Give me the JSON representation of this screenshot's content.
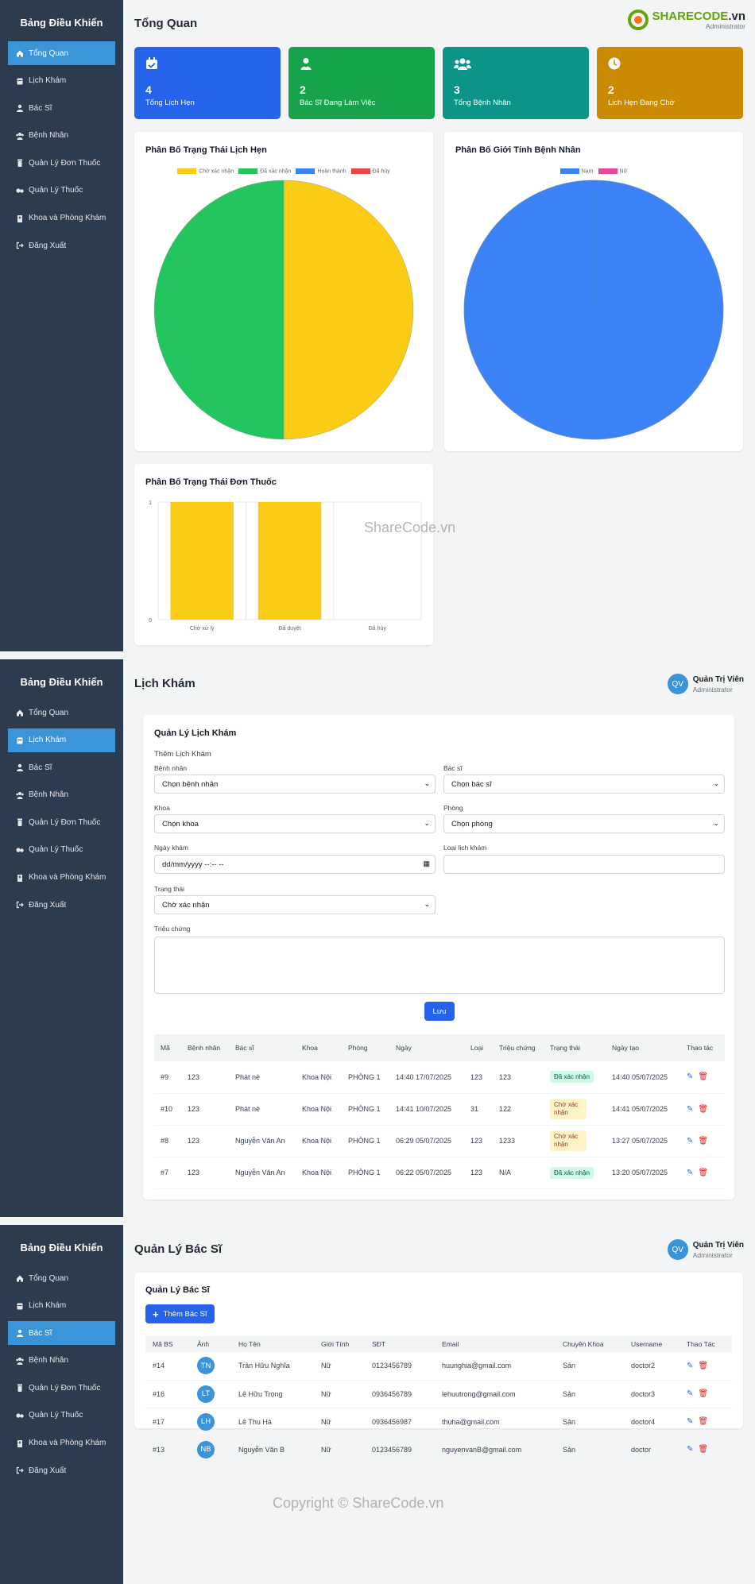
{
  "sidebar": {
    "title": "Bảng Điều Khiển",
    "items": [
      {
        "label": "Tổng Quan",
        "icon": "home-icon"
      },
      {
        "label": "Lịch Khám",
        "icon": "calendar-icon"
      },
      {
        "label": "Bác Sĩ",
        "icon": "user-doctor-icon"
      },
      {
        "label": "Bệnh Nhân",
        "icon": "users-icon"
      },
      {
        "label": "Quản Lý Đơn Thuốc",
        "icon": "prescription-bottle-icon"
      },
      {
        "label": "Quản Lý Thuốc",
        "icon": "pills-icon"
      },
      {
        "label": "Khoa và Phòng Khám",
        "icon": "hospital-icon"
      },
      {
        "label": "Đăng Xuất",
        "icon": "sign-out-icon"
      }
    ]
  },
  "dashboard": {
    "title": "Tổng Quan",
    "logo": {
      "brand": "SHARECODE",
      "suffix": ".vn"
    },
    "role": "Administrator",
    "stats": [
      {
        "value": "4",
        "label": "Tổng Lịch Hẹn",
        "color": "#2563eb",
        "icon": "calendar-check-icon"
      },
      {
        "value": "2",
        "label": "Bác Sĩ Đang Làm Việc",
        "color": "#16a34a",
        "icon": "user-doctor-icon"
      },
      {
        "value": "3",
        "label": "Tổng Bệnh Nhân",
        "color": "#0d9488",
        "icon": "users-icon"
      },
      {
        "value": "2",
        "label": "Lịch Hẹn Đang Chờ",
        "color": "#ca8a04",
        "icon": "clock-icon"
      }
    ],
    "watermark": "ShareCode.vn"
  },
  "chart_data": [
    {
      "type": "pie",
      "title": "Phân Bố Trạng Thái Lịch Hẹn",
      "legend_position": "top",
      "categories": [
        "Chờ xác nhận",
        "Đã xác nhận",
        "Hoàn thành",
        "Đã hủy"
      ],
      "values": [
        2,
        2,
        0,
        0
      ],
      "colors": [
        "#facc15",
        "#22c55e",
        "#3b82f6",
        "#ef4444"
      ]
    },
    {
      "type": "pie",
      "title": "Phân Bố Giới Tính Bệnh Nhân",
      "legend_position": "top",
      "categories": [
        "Nam",
        "Nữ"
      ],
      "values": [
        3,
        0
      ],
      "colors": [
        "#3b82f6",
        "#ec4899"
      ]
    },
    {
      "type": "bar",
      "title": "Phân Bố Trạng Thái Đơn Thuốc",
      "categories": [
        "Chờ xử lý",
        "Đã duyệt",
        "Đã hủy"
      ],
      "values": [
        1,
        1,
        0
      ],
      "ylim": [
        0,
        1
      ],
      "yticks": [
        "0",
        "1"
      ],
      "color": "#facc15",
      "grid": true
    }
  ],
  "appointments": {
    "title": "Lịch Khám",
    "user": {
      "initials": "QV",
      "name": "Quản Trị Viên",
      "role": "Administrator"
    },
    "card_title": "Quản Lý Lịch Khám",
    "form_title": "Thêm Lịch Khám",
    "fields": {
      "patient_label": "Bệnh nhân",
      "patient_value": "Chọn bệnh nhân",
      "doctor_label": "Bác sĩ",
      "doctor_value": "Chọn bác sĩ",
      "dept_label": "Khoa",
      "dept_value": "Chọn khoa",
      "room_label": "Phòng",
      "room_value": "Chọn phòng",
      "date_label": "Ngày khám",
      "date_value": "dd/mm/yyyy --:-- --",
      "type_label": "Loại lịch khám",
      "type_value": "",
      "status_label": "Trạng thái",
      "status_value": "Chờ xác nhận",
      "symptom_label": "Triệu chứng",
      "symptom_value": ""
    },
    "save_label": "Lưu",
    "headers": [
      "Mã",
      "Bệnh nhân",
      "Bác sĩ",
      "Khoa",
      "Phòng",
      "Ngày",
      "Loại",
      "Triệu chứng",
      "Trạng thái",
      "Ngày tạo",
      "Thao tác"
    ],
    "rows": [
      {
        "id": "#9",
        "patient": "123",
        "doctor": "Phát nè",
        "dept": "Khoa Nội",
        "room": "PHÒNG 1",
        "date": "14:40 17/07/2025",
        "type": "123",
        "symptom": "123",
        "status": "Đã xác nhận",
        "created": "14:40 05/07/2025"
      },
      {
        "id": "#10",
        "patient": "123",
        "doctor": "Phát nè",
        "dept": "Khoa Nội",
        "room": "PHÒNG 1",
        "date": "14:41 10/07/2025",
        "type": "31",
        "symptom": "122",
        "status": "Chờ xác nhận",
        "created": "14:41 05/07/2025"
      },
      {
        "id": "#8",
        "patient": "123",
        "doctor": "Nguyễn Văn An",
        "dept": "Khoa Nội",
        "room": "PHÒNG 1",
        "date": "06:29 05/07/2025",
        "type": "123",
        "symptom": "1233",
        "status": "Chờ xác nhận",
        "created": "13:27 05/07/2025"
      },
      {
        "id": "#7",
        "patient": "123",
        "doctor": "Nguyễn Văn An",
        "dept": "Khoa Nội",
        "room": "PHÒNG 1",
        "date": "06:22 05/07/2025",
        "type": "123",
        "symptom": "N/A",
        "status": "Đã xác nhận",
        "created": "13:20 05/07/2025"
      }
    ]
  },
  "doctors": {
    "title": "Quản Lý Bác Sĩ",
    "user": {
      "initials": "QV",
      "name": "Quản Trị Viên",
      "role": "Administrator"
    },
    "card_title": "Quản Lý Bác Sĩ",
    "add_label": "Thêm Bác Sĩ",
    "headers": [
      "Mã BS",
      "Ảnh",
      "Họ Tên",
      "Giới Tính",
      "SĐT",
      "Email",
      "Chuyên Khoa",
      "Username",
      "Thao Tác"
    ],
    "rows": [
      {
        "id": "#14",
        "initials": "TN",
        "name": "Trần Hữu Nghĩa",
        "gender": "Nữ",
        "phone": "0123456789",
        "email": "huunghia@gmail.com",
        "specialty": "Sản",
        "username": "doctor2"
      },
      {
        "id": "#16",
        "initials": "LT",
        "name": "Lê Hữu Trọng",
        "gender": "Nữ",
        "phone": "0936456789",
        "email": "lehuutrong@gmail.com",
        "specialty": "Sản",
        "username": "doctor3"
      },
      {
        "id": "#17",
        "initials": "LH",
        "name": "Lê Thu Hà",
        "gender": "Nữ",
        "phone": "0936456987",
        "email": "thuha@gmail.com",
        "specialty": "Sản",
        "username": "doctor4"
      },
      {
        "id": "#13",
        "initials": "NB",
        "name": "Nguyễn Văn B",
        "gender": "Nữ",
        "phone": "0123456789",
        "email": "nguyenvanB@gmail.com",
        "specialty": "Sản",
        "username": "doctor"
      }
    ],
    "copyright": "Copyright © ShareCode.vn"
  }
}
